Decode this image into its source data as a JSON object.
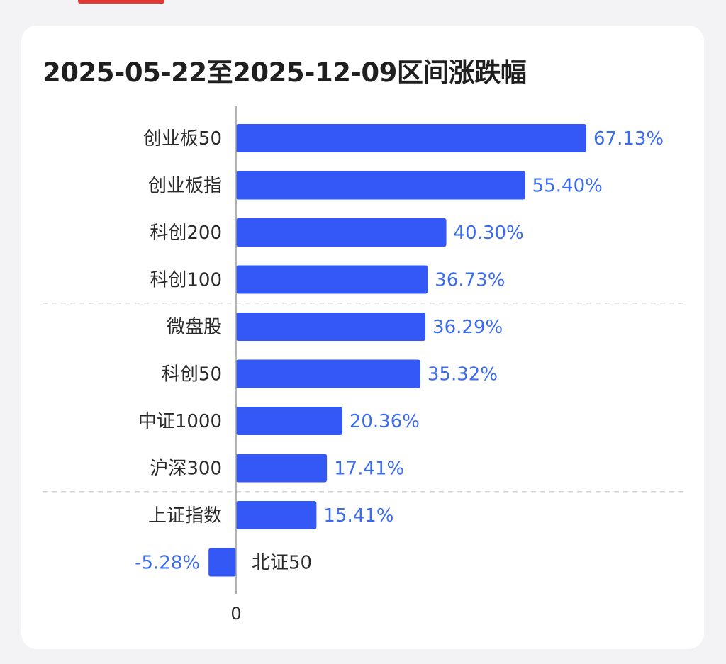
{
  "chart_data": {
    "type": "bar",
    "orientation": "horizontal",
    "title": "2025-05-22至2025-12-09区间涨跌幅",
    "categories": [
      "创业板50",
      "创业板指",
      "科创200",
      "科创100",
      "微盘股",
      "科创50",
      "中证1000",
      "沪深300",
      "上证指数",
      "北证50"
    ],
    "values": [
      67.13,
      55.4,
      40.3,
      36.73,
      36.29,
      35.32,
      20.36,
      17.41,
      15.41,
      -5.28
    ],
    "value_labels": [
      "67.13%",
      "55.40%",
      "40.30%",
      "36.73%",
      "36.29%",
      "35.32%",
      "20.36%",
      "17.41%",
      "15.41%",
      "-5.28%"
    ],
    "unit": "%",
    "axis_zero_label": "0",
    "group_separators_after_index": [
      3,
      7
    ],
    "bar_color": "#3358f5",
    "value_label_color": "#3b6cf0",
    "grid": false,
    "legend": "none"
  },
  "ui": {
    "accent_top_tab_color": "#e53935"
  }
}
